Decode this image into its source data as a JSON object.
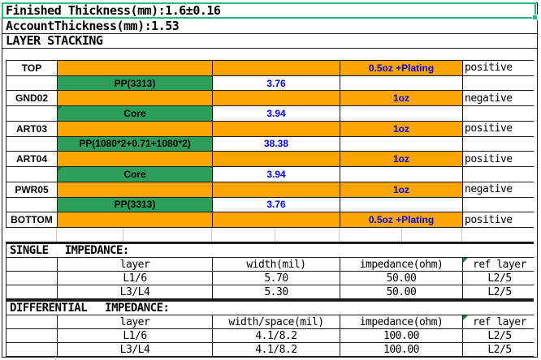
{
  "colors": {
    "orange": "#FFA500",
    "green": "#2E9E5B",
    "blue": "#0000EE",
    "selection": "#1FBF7A"
  },
  "header": {
    "finished_thickness": "Finished Thickness(mm):1.6±0.16",
    "account_thickness": "AccountThickness(mm):1.53",
    "section_title": "LAYER STACKING"
  },
  "stack": {
    "rows": [
      {
        "type": "copper",
        "name": "TOP",
        "oz": "0.5oz +Plating",
        "polarity": "positive"
      },
      {
        "type": "dielectric",
        "material": "PP(3313)",
        "thickness": "3.76"
      },
      {
        "type": "copper",
        "name": "GND02",
        "oz": "1oz",
        "polarity": "negative"
      },
      {
        "type": "dielectric",
        "material": "Core",
        "thickness": "3.94"
      },
      {
        "type": "copper",
        "name": "ART03",
        "oz": "1oz",
        "polarity": "positive"
      },
      {
        "type": "dielectric",
        "material": "PP(1080*2+0.71+1080*2)",
        "thickness": "38.38"
      },
      {
        "type": "copper",
        "name": "ART04",
        "oz": "1oz",
        "polarity": "positive"
      },
      {
        "type": "dielectric",
        "material": "Core",
        "thickness": "3.94"
      },
      {
        "type": "copper",
        "name": "PWR05",
        "oz": "1oz",
        "polarity": "negative"
      },
      {
        "type": "dielectric",
        "material": "PP(3313)",
        "thickness": "3.76"
      },
      {
        "type": "copper",
        "name": "BOTTOM",
        "oz": "0.5oz +Plating",
        "polarity": "positive"
      }
    ]
  },
  "single": {
    "title_left": "SINGLE",
    "title_right": "IMPEDANCE:",
    "headers": [
      "layer",
      "width(mil)",
      "impedance(ohm)",
      "ref layer"
    ],
    "rows": [
      [
        "L1/6",
        "5.70",
        "50.00",
        "L2/5"
      ],
      [
        "L3/L4",
        "5.30",
        "50.00",
        "L2/5"
      ]
    ]
  },
  "differential": {
    "title_left": "DIFFERENTIAL",
    "title_right": "IMPEDANCE:",
    "headers": [
      "layer",
      "width/space(mil)",
      "impedance(ohm)",
      "ref layer"
    ],
    "rows": [
      [
        "L1/6",
        "4.1/8.2",
        "100.00",
        "L2/5"
      ],
      [
        "L3/L4",
        "4.1/8.2",
        "100.00",
        "L2/5"
      ]
    ]
  }
}
